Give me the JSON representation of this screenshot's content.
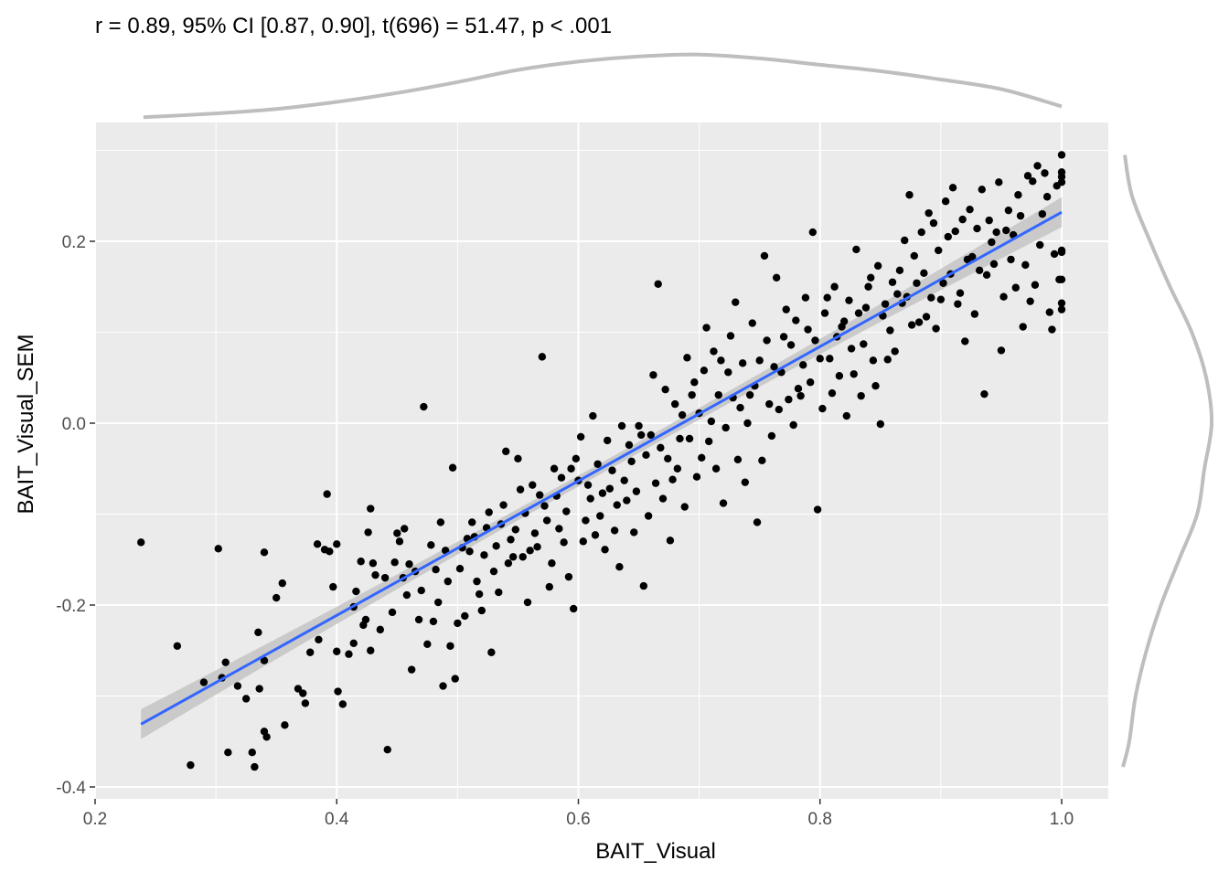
{
  "chart_data": {
    "type": "scatter",
    "subtitle": "r = 0.89, 95% CI [0.87, 0.90], t(696) = 51.47, p < .001",
    "xlabel": "BAIT_Visual",
    "ylabel": "BAIT_Visual_SEM",
    "xlim": [
      0.2,
      1.0
    ],
    "ylim": [
      -0.4,
      0.3
    ],
    "x_ticks": [
      0.2,
      0.4,
      0.6,
      0.8,
      1.0
    ],
    "x_tick_labels": [
      "0.2",
      "0.4",
      "0.6",
      "0.8",
      "1.0"
    ],
    "y_ticks": [
      -0.4,
      -0.2,
      0.0,
      0.2
    ],
    "y_tick_labels": [
      "-0.4",
      "-0.2",
      "0.0",
      "0.2"
    ],
    "grid": true,
    "background": "#ebebeb",
    "point_color": "#000000",
    "regression": {
      "method": "linear",
      "x": [
        0.238,
        1.0
      ],
      "y": [
        -0.331,
        0.232
      ],
      "color": "#3366ff",
      "ci_color": "#c7c7c7"
    },
    "marginal_x_density": {
      "x": [
        0.24,
        0.3,
        0.35,
        0.4,
        0.45,
        0.5,
        0.55,
        0.6,
        0.65,
        0.7,
        0.75,
        0.8,
        0.85,
        0.9,
        0.95,
        1.0
      ],
      "density": [
        0.01,
        0.07,
        0.14,
        0.25,
        0.39,
        0.56,
        0.75,
        0.88,
        0.96,
        0.99,
        0.93,
        0.83,
        0.73,
        0.6,
        0.45,
        0.18
      ]
    },
    "marginal_y_density": {
      "y": [
        -0.378,
        -0.35,
        -0.3,
        -0.25,
        -0.2,
        -0.15,
        -0.1,
        -0.05,
        0.0,
        0.05,
        0.1,
        0.15,
        0.2,
        0.25,
        0.295
      ],
      "density": [
        0.0,
        0.07,
        0.14,
        0.26,
        0.42,
        0.62,
        0.82,
        0.9,
        0.98,
        0.92,
        0.76,
        0.52,
        0.3,
        0.1,
        0.02
      ]
    },
    "points": [
      [
        0.238,
        -0.131
      ],
      [
        0.268,
        -0.245
      ],
      [
        0.279,
        -0.376
      ],
      [
        0.29,
        -0.285
      ],
      [
        0.302,
        -0.138
      ],
      [
        0.305,
        -0.28
      ],
      [
        0.308,
        -0.263
      ],
      [
        0.31,
        -0.362
      ],
      [
        0.318,
        -0.289
      ],
      [
        0.325,
        -0.303
      ],
      [
        0.33,
        -0.362
      ],
      [
        0.332,
        -0.378
      ],
      [
        0.335,
        -0.23
      ],
      [
        0.336,
        -0.292
      ],
      [
        0.34,
        -0.261
      ],
      [
        0.34,
        -0.142
      ],
      [
        0.34,
        -0.339
      ],
      [
        0.342,
        -0.345
      ],
      [
        0.35,
        -0.192
      ],
      [
        0.355,
        -0.176
      ],
      [
        0.357,
        -0.332
      ],
      [
        0.368,
        -0.292
      ],
      [
        0.372,
        -0.297
      ],
      [
        0.374,
        -0.308
      ],
      [
        0.378,
        -0.252
      ],
      [
        0.384,
        -0.133
      ],
      [
        0.385,
        -0.238
      ],
      [
        0.39,
        -0.139
      ],
      [
        0.392,
        -0.078
      ],
      [
        0.394,
        -0.141
      ],
      [
        0.397,
        -0.18
      ],
      [
        0.4,
        -0.251
      ],
      [
        0.4,
        -0.133
      ],
      [
        0.401,
        -0.295
      ],
      [
        0.405,
        -0.309
      ],
      [
        0.41,
        -0.254
      ],
      [
        0.414,
        -0.242
      ],
      [
        0.414,
        -0.202
      ],
      [
        0.416,
        -0.185
      ],
      [
        0.42,
        -0.152
      ],
      [
        0.422,
        -0.222
      ],
      [
        0.424,
        -0.216
      ],
      [
        0.426,
        -0.12
      ],
      [
        0.428,
        -0.25
      ],
      [
        0.428,
        -0.094
      ],
      [
        0.43,
        -0.154
      ],
      [
        0.432,
        -0.167
      ],
      [
        0.436,
        -0.227
      ],
      [
        0.44,
        -0.17
      ],
      [
        0.442,
        -0.359
      ],
      [
        0.446,
        -0.208
      ],
      [
        0.448,
        -0.153
      ],
      [
        0.45,
        -0.121
      ],
      [
        0.452,
        -0.13
      ],
      [
        0.455,
        -0.17
      ],
      [
        0.456,
        -0.116
      ],
      [
        0.458,
        -0.189
      ],
      [
        0.46,
        -0.155
      ],
      [
        0.462,
        -0.271
      ],
      [
        0.465,
        -0.163
      ],
      [
        0.468,
        -0.216
      ],
      [
        0.47,
        -0.184
      ],
      [
        0.472,
        0.018
      ],
      [
        0.475,
        -0.243
      ],
      [
        0.478,
        -0.134
      ],
      [
        0.48,
        -0.218
      ],
      [
        0.482,
        -0.161
      ],
      [
        0.484,
        -0.197
      ],
      [
        0.486,
        -0.109
      ],
      [
        0.488,
        -0.289
      ],
      [
        0.49,
        -0.14
      ],
      [
        0.492,
        -0.174
      ],
      [
        0.494,
        -0.245
      ],
      [
        0.496,
        -0.049
      ],
      [
        0.498,
        -0.281
      ],
      [
        0.5,
        -0.22
      ],
      [
        0.502,
        -0.16
      ],
      [
        0.504,
        -0.137
      ],
      [
        0.506,
        -0.212
      ],
      [
        0.508,
        -0.127
      ],
      [
        0.51,
        -0.141
      ],
      [
        0.512,
        -0.109
      ],
      [
        0.514,
        -0.125
      ],
      [
        0.516,
        -0.174
      ],
      [
        0.518,
        -0.188
      ],
      [
        0.52,
        -0.206
      ],
      [
        0.522,
        -0.145
      ],
      [
        0.524,
        -0.115
      ],
      [
        0.526,
        -0.098
      ],
      [
        0.528,
        -0.252
      ],
      [
        0.53,
        -0.163
      ],
      [
        0.532,
        -0.135
      ],
      [
        0.534,
        -0.186
      ],
      [
        0.536,
        -0.111
      ],
      [
        0.538,
        -0.09
      ],
      [
        0.54,
        -0.031
      ],
      [
        0.542,
        -0.154
      ],
      [
        0.544,
        -0.128
      ],
      [
        0.546,
        -0.147
      ],
      [
        0.548,
        -0.117
      ],
      [
        0.55,
        -0.039
      ],
      [
        0.552,
        -0.073
      ],
      [
        0.554,
        -0.147
      ],
      [
        0.556,
        -0.099
      ],
      [
        0.558,
        -0.197
      ],
      [
        0.56,
        -0.14
      ],
      [
        0.562,
        -0.068
      ],
      [
        0.564,
        -0.121
      ],
      [
        0.566,
        -0.136
      ],
      [
        0.568,
        -0.079
      ],
      [
        0.57,
        0.073
      ],
      [
        0.572,
        -0.091
      ],
      [
        0.574,
        -0.107
      ],
      [
        0.576,
        -0.18
      ],
      [
        0.578,
        -0.154
      ],
      [
        0.58,
        -0.05
      ],
      [
        0.582,
        -0.08
      ],
      [
        0.584,
        -0.116
      ],
      [
        0.586,
        -0.06
      ],
      [
        0.588,
        -0.131
      ],
      [
        0.59,
        -0.097
      ],
      [
        0.592,
        -0.169
      ],
      [
        0.594,
        -0.05
      ],
      [
        0.596,
        -0.204
      ],
      [
        0.598,
        -0.039
      ],
      [
        0.6,
        -0.063
      ],
      [
        0.602,
        -0.015
      ],
      [
        0.604,
        -0.13
      ],
      [
        0.606,
        -0.107
      ],
      [
        0.608,
        -0.068
      ],
      [
        0.61,
        -0.083
      ],
      [
        0.612,
        0.008
      ],
      [
        0.614,
        -0.123
      ],
      [
        0.616,
        -0.045
      ],
      [
        0.618,
        -0.102
      ],
      [
        0.62,
        -0.077
      ],
      [
        0.622,
        -0.139
      ],
      [
        0.624,
        -0.019
      ],
      [
        0.626,
        -0.072
      ],
      [
        0.628,
        -0.052
      ],
      [
        0.63,
        -0.118
      ],
      [
        0.632,
        -0.09
      ],
      [
        0.634,
        -0.158
      ],
      [
        0.636,
        -0.003
      ],
      [
        0.638,
        -0.063
      ],
      [
        0.64,
        -0.085
      ],
      [
        0.642,
        -0.024
      ],
      [
        0.644,
        -0.042
      ],
      [
        0.646,
        -0.12
      ],
      [
        0.648,
        -0.075
      ],
      [
        0.65,
        -0.003
      ],
      [
        0.652,
        -0.013
      ],
      [
        0.654,
        -0.179
      ],
      [
        0.656,
        -0.035
      ],
      [
        0.658,
        -0.102
      ],
      [
        0.66,
        -0.013
      ],
      [
        0.662,
        0.053
      ],
      [
        0.664,
        -0.066
      ],
      [
        0.666,
        0.153
      ],
      [
        0.668,
        -0.027
      ],
      [
        0.67,
        -0.083
      ],
      [
        0.672,
        0.037
      ],
      [
        0.674,
        -0.039
      ],
      [
        0.676,
        -0.129
      ],
      [
        0.678,
        -0.062
      ],
      [
        0.68,
        0.021
      ],
      [
        0.682,
        -0.05
      ],
      [
        0.684,
        -0.017
      ],
      [
        0.686,
        0.009
      ],
      [
        0.688,
        -0.092
      ],
      [
        0.69,
        0.072
      ],
      [
        0.692,
        -0.017
      ],
      [
        0.694,
        0.031
      ],
      [
        0.696,
        0.045
      ],
      [
        0.698,
        -0.059
      ],
      [
        0.7,
        0.011
      ],
      [
        0.702,
        -0.038
      ],
      [
        0.704,
        0.058
      ],
      [
        0.706,
        0.105
      ],
      [
        0.708,
        -0.02
      ],
      [
        0.71,
        0.002
      ],
      [
        0.712,
        0.079
      ],
      [
        0.714,
        -0.05
      ],
      [
        0.716,
        0.031
      ],
      [
        0.718,
        0.069
      ],
      [
        0.72,
        -0.088
      ],
      [
        0.722,
        -0.005
      ],
      [
        0.724,
        0.056
      ],
      [
        0.726,
        0.096
      ],
      [
        0.728,
        0.028
      ],
      [
        0.73,
        0.133
      ],
      [
        0.732,
        -0.04
      ],
      [
        0.734,
        0.017
      ],
      [
        0.736,
        0.066
      ],
      [
        0.738,
        -0.065
      ],
      [
        0.74,
        0.0
      ],
      [
        0.742,
        0.031
      ],
      [
        0.744,
        0.11
      ],
      [
        0.746,
        0.041
      ],
      [
        0.748,
        -0.109
      ],
      [
        0.75,
        0.069
      ],
      [
        0.752,
        -0.041
      ],
      [
        0.754,
        0.184
      ],
      [
        0.756,
        0.091
      ],
      [
        0.758,
        0.021
      ],
      [
        0.76,
        -0.014
      ],
      [
        0.762,
        0.062
      ],
      [
        0.764,
        0.16
      ],
      [
        0.766,
        0.015
      ],
      [
        0.768,
        0.056
      ],
      [
        0.77,
        0.095
      ],
      [
        0.772,
        0.125
      ],
      [
        0.774,
        0.026
      ],
      [
        0.776,
        0.086
      ],
      [
        0.778,
        -0.002
      ],
      [
        0.78,
        0.113
      ],
      [
        0.782,
        0.038
      ],
      [
        0.784,
        0.03
      ],
      [
        0.786,
        0.064
      ],
      [
        0.788,
        0.138
      ],
      [
        0.79,
        0.103
      ],
      [
        0.792,
        0.045
      ],
      [
        0.794,
        0.21
      ],
      [
        0.796,
        0.091
      ],
      [
        0.798,
        -0.095
      ],
      [
        0.8,
        0.071
      ],
      [
        0.802,
        0.016
      ],
      [
        0.804,
        0.121
      ],
      [
        0.806,
        0.138
      ],
      [
        0.808,
        0.071
      ],
      [
        0.81,
        0.033
      ],
      [
        0.812,
        0.15
      ],
      [
        0.814,
        0.095
      ],
      [
        0.816,
        0.052
      ],
      [
        0.818,
        0.106
      ],
      [
        0.82,
        0.112
      ],
      [
        0.822,
        0.008
      ],
      [
        0.824,
        0.135
      ],
      [
        0.826,
        0.082
      ],
      [
        0.828,
        0.054
      ],
      [
        0.83,
        0.191
      ],
      [
        0.832,
        0.121
      ],
      [
        0.834,
        0.03
      ],
      [
        0.836,
        0.087
      ],
      [
        0.838,
        0.127
      ],
      [
        0.84,
        0.15
      ],
      [
        0.842,
        0.16
      ],
      [
        0.844,
        0.069
      ],
      [
        0.846,
        0.041
      ],
      [
        0.848,
        0.173
      ],
      [
        0.85,
        -0.001
      ],
      [
        0.852,
        0.118
      ],
      [
        0.854,
        0.131
      ],
      [
        0.856,
        0.07
      ],
      [
        0.858,
        0.102
      ],
      [
        0.86,
        0.155
      ],
      [
        0.862,
        0.079
      ],
      [
        0.864,
        0.142
      ],
      [
        0.866,
        0.168
      ],
      [
        0.868,
        0.132
      ],
      [
        0.87,
        0.201
      ],
      [
        0.872,
        0.139
      ],
      [
        0.874,
        0.251
      ],
      [
        0.876,
        0.108
      ],
      [
        0.878,
        0.184
      ],
      [
        0.88,
        0.154
      ],
      [
        0.882,
        0.111
      ],
      [
        0.884,
        0.21
      ],
      [
        0.886,
        0.165
      ],
      [
        0.888,
        0.117
      ],
      [
        0.89,
        0.231
      ],
      [
        0.892,
        0.138
      ],
      [
        0.894,
        0.22
      ],
      [
        0.896,
        0.104
      ],
      [
        0.898,
        0.19
      ],
      [
        0.9,
        0.136
      ],
      [
        0.902,
        0.154
      ],
      [
        0.904,
        0.244
      ],
      [
        0.906,
        0.205
      ],
      [
        0.908,
        0.164
      ],
      [
        0.91,
        0.259
      ],
      [
        0.912,
        0.211
      ],
      [
        0.914,
        0.131
      ],
      [
        0.916,
        0.143
      ],
      [
        0.918,
        0.224
      ],
      [
        0.92,
        0.09
      ],
      [
        0.922,
        0.18
      ],
      [
        0.924,
        0.235
      ],
      [
        0.926,
        0.183
      ],
      [
        0.928,
        0.12
      ],
      [
        0.93,
        0.214
      ],
      [
        0.932,
        0.168
      ],
      [
        0.934,
        0.257
      ],
      [
        0.936,
        0.032
      ],
      [
        0.938,
        0.163
      ],
      [
        0.94,
        0.223
      ],
      [
        0.942,
        0.199
      ],
      [
        0.944,
        0.175
      ],
      [
        0.946,
        0.21
      ],
      [
        0.948,
        0.265
      ],
      [
        0.95,
        0.08
      ],
      [
        0.952,
        0.139
      ],
      [
        0.954,
        0.212
      ],
      [
        0.956,
        0.234
      ],
      [
        0.958,
        0.18
      ],
      [
        0.96,
        0.207
      ],
      [
        0.962,
        0.149
      ],
      [
        0.964,
        0.251
      ],
      [
        0.966,
        0.228
      ],
      [
        0.968,
        0.106
      ],
      [
        0.97,
        0.174
      ],
      [
        0.972,
        0.272
      ],
      [
        0.974,
        0.134
      ],
      [
        0.976,
        0.266
      ],
      [
        0.978,
        0.152
      ],
      [
        0.98,
        0.283
      ],
      [
        0.982,
        0.196
      ],
      [
        0.984,
        0.23
      ],
      [
        0.986,
        0.275
      ],
      [
        0.988,
        0.249
      ],
      [
        0.99,
        0.122
      ],
      [
        0.992,
        0.103
      ],
      [
        0.994,
        0.186
      ],
      [
        0.996,
        0.261
      ],
      [
        0.998,
        0.158
      ],
      [
        1.0,
        0.295
      ],
      [
        1.0,
        0.276
      ],
      [
        1.0,
        0.265
      ],
      [
        1.0,
        0.188
      ],
      [
        1.0,
        0.158
      ],
      [
        1.0,
        0.132
      ],
      [
        1.0,
        0.125
      ],
      [
        1.0,
        0.271
      ],
      [
        1.0,
        0.19
      ]
    ]
  }
}
